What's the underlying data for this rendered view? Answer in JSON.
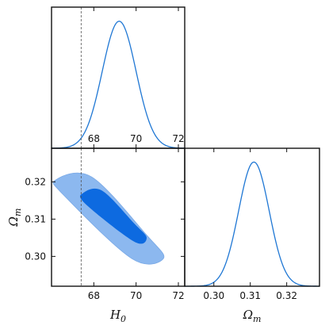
{
  "chart_data": [
    {
      "type": "line",
      "panel": "H0 marginal posterior",
      "xlim": [
        66.0,
        72.3
      ],
      "xticks": [
        68,
        70,
        72
      ],
      "tick_labels": [
        "68",
        "70",
        "72"
      ],
      "distribution": {
        "mean": 69.2,
        "sigma": 0.8
      },
      "reference_line_x": 67.4,
      "line_color": "#1f77d4"
    },
    {
      "type": "contour",
      "panel": "H0 vs Omega_m joint posterior",
      "xlim": [
        66.0,
        72.3
      ],
      "ylim": [
        0.292,
        0.329
      ],
      "xticks": [
        68,
        70,
        72
      ],
      "x_tick_labels": [
        "68",
        "70",
        "72"
      ],
      "yticks": [
        0.3,
        0.31,
        0.32
      ],
      "y_tick_labels": [
        "0.30",
        "0.31",
        "0.32"
      ],
      "xlabel_main": "H",
      "xlabel_sub": "0",
      "ylabel_main": "Ω",
      "ylabel_sub": "m",
      "contours": {
        "center": {
          "x": 69.2,
          "y": 0.3115
        },
        "levels": [
          {
            "name": "95%",
            "points": [
              {
                "x": 66.2,
                "y": 0.3205
              },
              {
                "x": 67.9,
                "y": 0.3213
              },
              {
                "x": 70.5,
                "y": 0.3057
              },
              {
                "x": 71.3,
                "y": 0.2995
              },
              {
                "x": 69.8,
                "y": 0.2994
              },
              {
                "x": 66.6,
                "y": 0.3163
              }
            ],
            "color": "#8cb8ef"
          },
          {
            "name": "68%",
            "points": [
              {
                "x": 67.5,
                "y": 0.317
              },
              {
                "x": 68.4,
                "y": 0.3176
              },
              {
                "x": 69.9,
                "y": 0.3089
              },
              {
                "x": 70.5,
                "y": 0.305
              },
              {
                "x": 69.9,
                "y": 0.304
              },
              {
                "x": 67.6,
                "y": 0.3141
              }
            ],
            "color": "#0d6ae0"
          }
        ]
      },
      "reference_line_x": 67.4
    },
    {
      "type": "line",
      "panel": "Omega_m marginal posterior",
      "xlim": [
        0.292,
        0.329
      ],
      "xticks": [
        0.3,
        0.31,
        0.32
      ],
      "tick_labels": [
        "0.30",
        "0.31",
        "0.32"
      ],
      "distribution": {
        "mean": 0.311,
        "sigma": 0.0042
      },
      "xlabel_main": "Ω",
      "xlabel_sub": "m",
      "line_color": "#1f77d4"
    }
  ],
  "colors": {
    "frame": "#111111",
    "line": "#1f77d4",
    "contour_outer": "#8cb8ef",
    "contour_inner": "#0d6ae0",
    "reference": "#555555"
  }
}
